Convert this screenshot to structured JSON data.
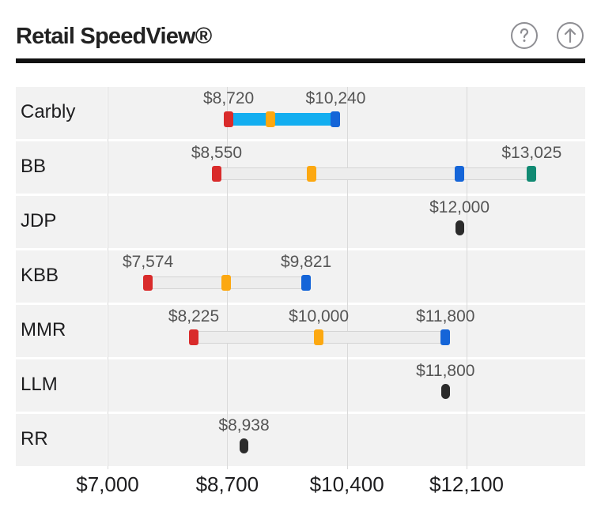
{
  "header": {
    "title": "Retail SpeedView®",
    "help_icon": "question-circle-icon",
    "share_icon": "arrow-up-circle-icon"
  },
  "colors": {
    "low": "#d92b2b",
    "mid": "#fca811",
    "high": "#1565d8",
    "max": "#118a73",
    "active_fill": "#13aef0",
    "point": "#2b2b2b"
  },
  "axis": {
    "min": 7000,
    "max": 13300,
    "ticks": [
      {
        "value": 7000,
        "label": "$7,000"
      },
      {
        "value": 8700,
        "label": "$8,700"
      },
      {
        "value": 10400,
        "label": "$10,400"
      },
      {
        "value": 12100,
        "label": "$12,100"
      }
    ]
  },
  "rows": [
    {
      "label": "Carbly",
      "type": "range",
      "active": true,
      "low": 8720,
      "mid": 9310,
      "high": 10240,
      "low_label": "$8,720",
      "high_label": "$10,240"
    },
    {
      "label": "BB",
      "type": "range",
      "low": 8550,
      "mid": 9900,
      "high": 12000,
      "max": 13025,
      "low_label": "$8,550",
      "max_label": "$13,025"
    },
    {
      "label": "JDP",
      "type": "point",
      "value": 12000,
      "value_label": "$12,000"
    },
    {
      "label": "KBB",
      "type": "range",
      "low": 7574,
      "mid": 8680,
      "high": 9821,
      "low_label": "$7,574",
      "high_label": "$9,821"
    },
    {
      "label": "MMR",
      "type": "range",
      "low": 8225,
      "mid": 10000,
      "high": 11800,
      "low_label": "$8,225",
      "mid_label": "$10,000",
      "high_label": "$11,800"
    },
    {
      "label": "LLM",
      "type": "point",
      "value": 11800,
      "value_label": "$11,800"
    },
    {
      "label": "RR",
      "type": "point",
      "value": 8938,
      "value_label": "$8,938"
    }
  ]
}
